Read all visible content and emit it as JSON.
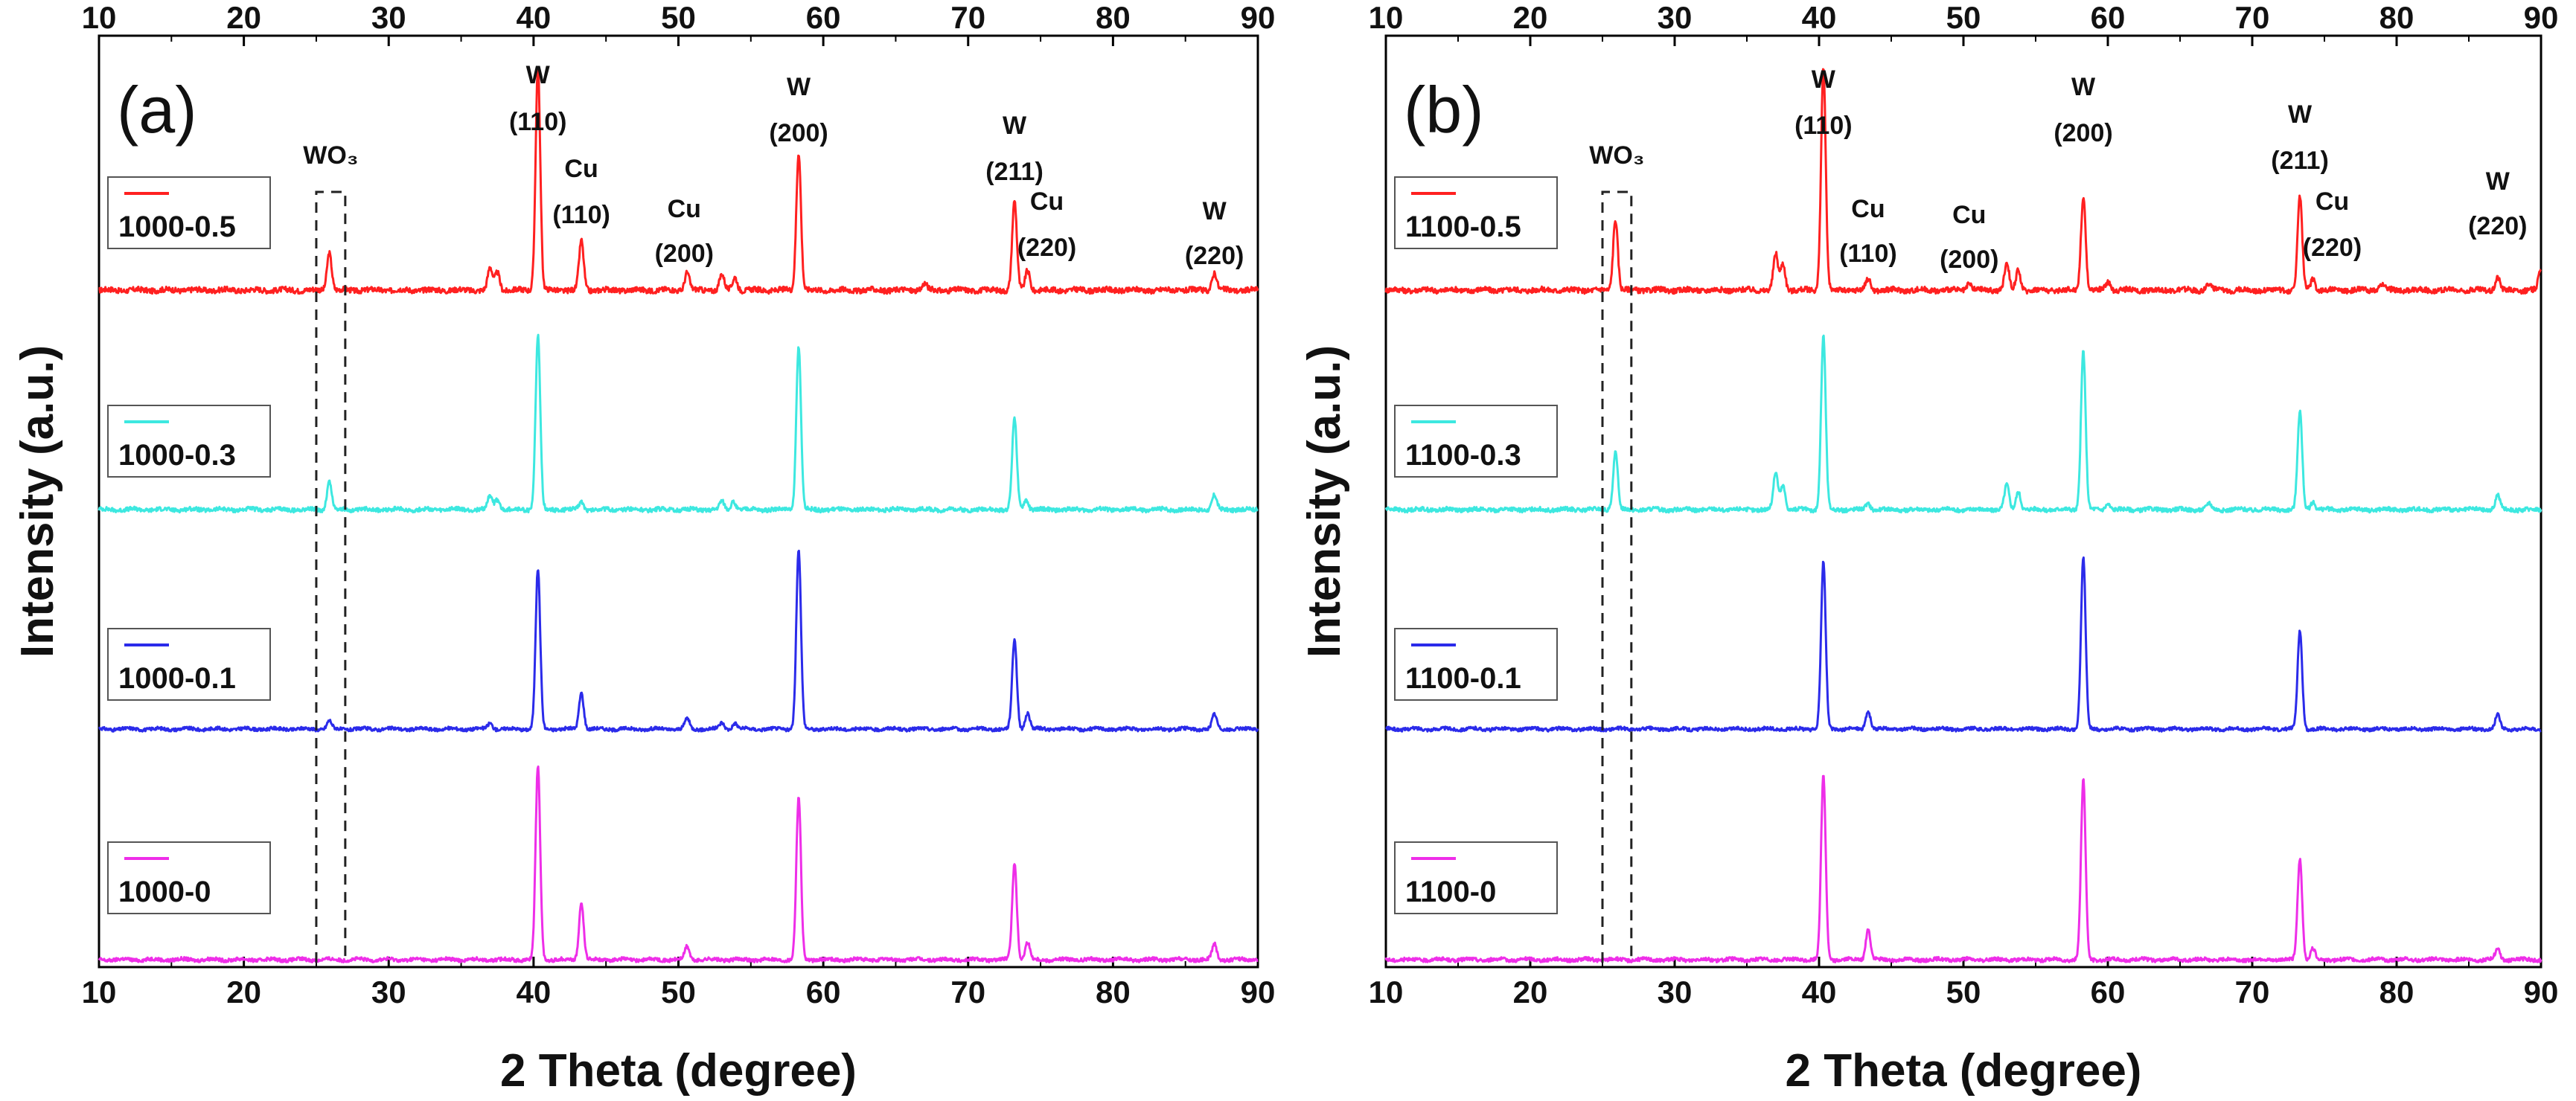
{
  "chart_data": [
    {
      "panel": "a",
      "panel_label": "(a)",
      "type": "line",
      "xlabel": "2 Theta (degree)",
      "ylabel": "Intensity (a.u.)",
      "xlim": [
        10,
        90
      ],
      "xticks": [
        "10",
        "20",
        "30",
        "40",
        "50",
        "60",
        "70",
        "80",
        "90"
      ],
      "wo3_label": "WO₃",
      "wo3_box": [
        25,
        27
      ],
      "peak_labels": [
        {
          "x": 40.3,
          "line1": "W",
          "line2": "(110)"
        },
        {
          "x": 43.3,
          "line1": "Cu",
          "line2": "(110)"
        },
        {
          "x": 50.4,
          "line1": "Cu",
          "line2": "(200)"
        },
        {
          "x": 58.3,
          "line1": "W",
          "line2": "(200)"
        },
        {
          "x": 73.2,
          "line1": "W",
          "line2": "(211)"
        },
        {
          "x": 74.1,
          "line1": "Cu",
          "line2": "(220)"
        },
        {
          "x": 87.0,
          "line1": "W",
          "line2": "(220)"
        }
      ],
      "series": [
        {
          "name": "1000-0.5",
          "color": "#ff2020",
          "offset": 3,
          "noise": 0.012,
          "peaks": [
            [
              25.9,
              0.17
            ],
            [
              37.0,
              0.1
            ],
            [
              37.5,
              0.08
            ],
            [
              40.3,
              1.0
            ],
            [
              43.3,
              0.22
            ],
            [
              50.6,
              0.08
            ],
            [
              53.0,
              0.07
            ],
            [
              53.9,
              0.06
            ],
            [
              58.3,
              0.62
            ],
            [
              67.0,
              0.03
            ],
            [
              73.2,
              0.4
            ],
            [
              74.1,
              0.09
            ],
            [
              87.0,
              0.08
            ]
          ]
        },
        {
          "name": "1000-0.3",
          "color": "#3de8e0",
          "offset": 2,
          "noise": 0.01,
          "peaks": [
            [
              25.9,
              0.14
            ],
            [
              37.0,
              0.07
            ],
            [
              37.5,
              0.05
            ],
            [
              40.3,
              0.85
            ],
            [
              43.3,
              0.04
            ],
            [
              53.0,
              0.04
            ],
            [
              53.8,
              0.04
            ],
            [
              58.3,
              0.8
            ],
            [
              73.2,
              0.45
            ],
            [
              74.0,
              0.05
            ],
            [
              87.0,
              0.07
            ]
          ]
        },
        {
          "name": "1000-0.1",
          "color": "#2b2bea",
          "offset": 1,
          "noise": 0.008,
          "peaks": [
            [
              25.9,
              0.04
            ],
            [
              37.0,
              0.03
            ],
            [
              40.3,
              0.78
            ],
            [
              43.3,
              0.18
            ],
            [
              50.6,
              0.05
            ],
            [
              53.0,
              0.03
            ],
            [
              53.9,
              0.03
            ],
            [
              58.3,
              0.88
            ],
            [
              73.2,
              0.44
            ],
            [
              74.1,
              0.08
            ],
            [
              87.0,
              0.07
            ]
          ]
        },
        {
          "name": "1000-0",
          "color": "#ee2ee8",
          "offset": 0,
          "noise": 0.008,
          "peaks": [
            [
              40.3,
              0.88
            ],
            [
              43.3,
              0.26
            ],
            [
              50.6,
              0.06
            ],
            [
              58.3,
              0.74
            ],
            [
              73.2,
              0.44
            ],
            [
              74.1,
              0.08
            ],
            [
              87.0,
              0.07
            ]
          ]
        }
      ]
    },
    {
      "panel": "b",
      "panel_label": "(b)",
      "type": "line",
      "xlabel": "2 Theta (degree)",
      "ylabel": "Intensity (a.u.)",
      "xlim": [
        10,
        90
      ],
      "xticks": [
        "10",
        "20",
        "30",
        "40",
        "50",
        "60",
        "70",
        "80",
        "90"
      ],
      "wo3_label": "WO₃",
      "wo3_box": [
        25,
        27
      ],
      "peak_labels": [
        {
          "x": 40.3,
          "line1": "W",
          "line2": "(110)"
        },
        {
          "x": 43.4,
          "line1": "Cu",
          "line2": "(110)"
        },
        {
          "x": 50.4,
          "line1": "Cu",
          "line2": "(200)"
        },
        {
          "x": 58.3,
          "line1": "W",
          "line2": "(200)"
        },
        {
          "x": 73.3,
          "line1": "W",
          "line2": "(211)"
        },
        {
          "x": 74.2,
          "line1": "Cu",
          "line2": "(220)"
        },
        {
          "x": 87.0,
          "line1": "W",
          "line2": "(220)"
        }
      ],
      "series": [
        {
          "name": "1100-0.5",
          "color": "#ff2020",
          "offset": 3,
          "noise": 0.012,
          "peaks": [
            [
              25.9,
              0.32
            ],
            [
              37.0,
              0.16
            ],
            [
              37.5,
              0.12
            ],
            [
              40.3,
              1.0
            ],
            [
              43.4,
              0.05
            ],
            [
              50.4,
              0.03
            ],
            [
              53.0,
              0.12
            ],
            [
              53.8,
              0.09
            ],
            [
              58.3,
              0.42
            ],
            [
              60.0,
              0.04
            ],
            [
              67.0,
              0.03
            ],
            [
              73.3,
              0.42
            ],
            [
              74.2,
              0.05
            ],
            [
              79.0,
              0.03
            ],
            [
              87.0,
              0.06
            ],
            [
              90.0,
              0.1
            ]
          ]
        },
        {
          "name": "1100-0.3",
          "color": "#3de8e0",
          "offset": 2,
          "noise": 0.01,
          "peaks": [
            [
              25.9,
              0.28
            ],
            [
              37.0,
              0.18
            ],
            [
              37.5,
              0.12
            ],
            [
              40.3,
              0.85
            ],
            [
              43.4,
              0.03
            ],
            [
              53.0,
              0.12
            ],
            [
              53.8,
              0.09
            ],
            [
              58.3,
              0.78
            ],
            [
              60.0,
              0.03
            ],
            [
              67.0,
              0.03
            ],
            [
              73.3,
              0.48
            ],
            [
              74.2,
              0.04
            ],
            [
              87.0,
              0.07
            ]
          ]
        },
        {
          "name": "1100-0.1",
          "color": "#2b2bea",
          "offset": 1,
          "noise": 0.008,
          "peaks": [
            [
              40.3,
              0.82
            ],
            [
              43.4,
              0.09
            ],
            [
              58.3,
              0.84
            ],
            [
              73.3,
              0.48
            ],
            [
              87.0,
              0.07
            ]
          ]
        },
        {
          "name": "1100-0",
          "color": "#ee2ee8",
          "offset": 0,
          "noise": 0.008,
          "peaks": [
            [
              40.3,
              0.84
            ],
            [
              43.4,
              0.14
            ],
            [
              58.3,
              0.82
            ],
            [
              73.3,
              0.46
            ],
            [
              74.2,
              0.05
            ],
            [
              87.0,
              0.05
            ]
          ]
        }
      ]
    }
  ]
}
